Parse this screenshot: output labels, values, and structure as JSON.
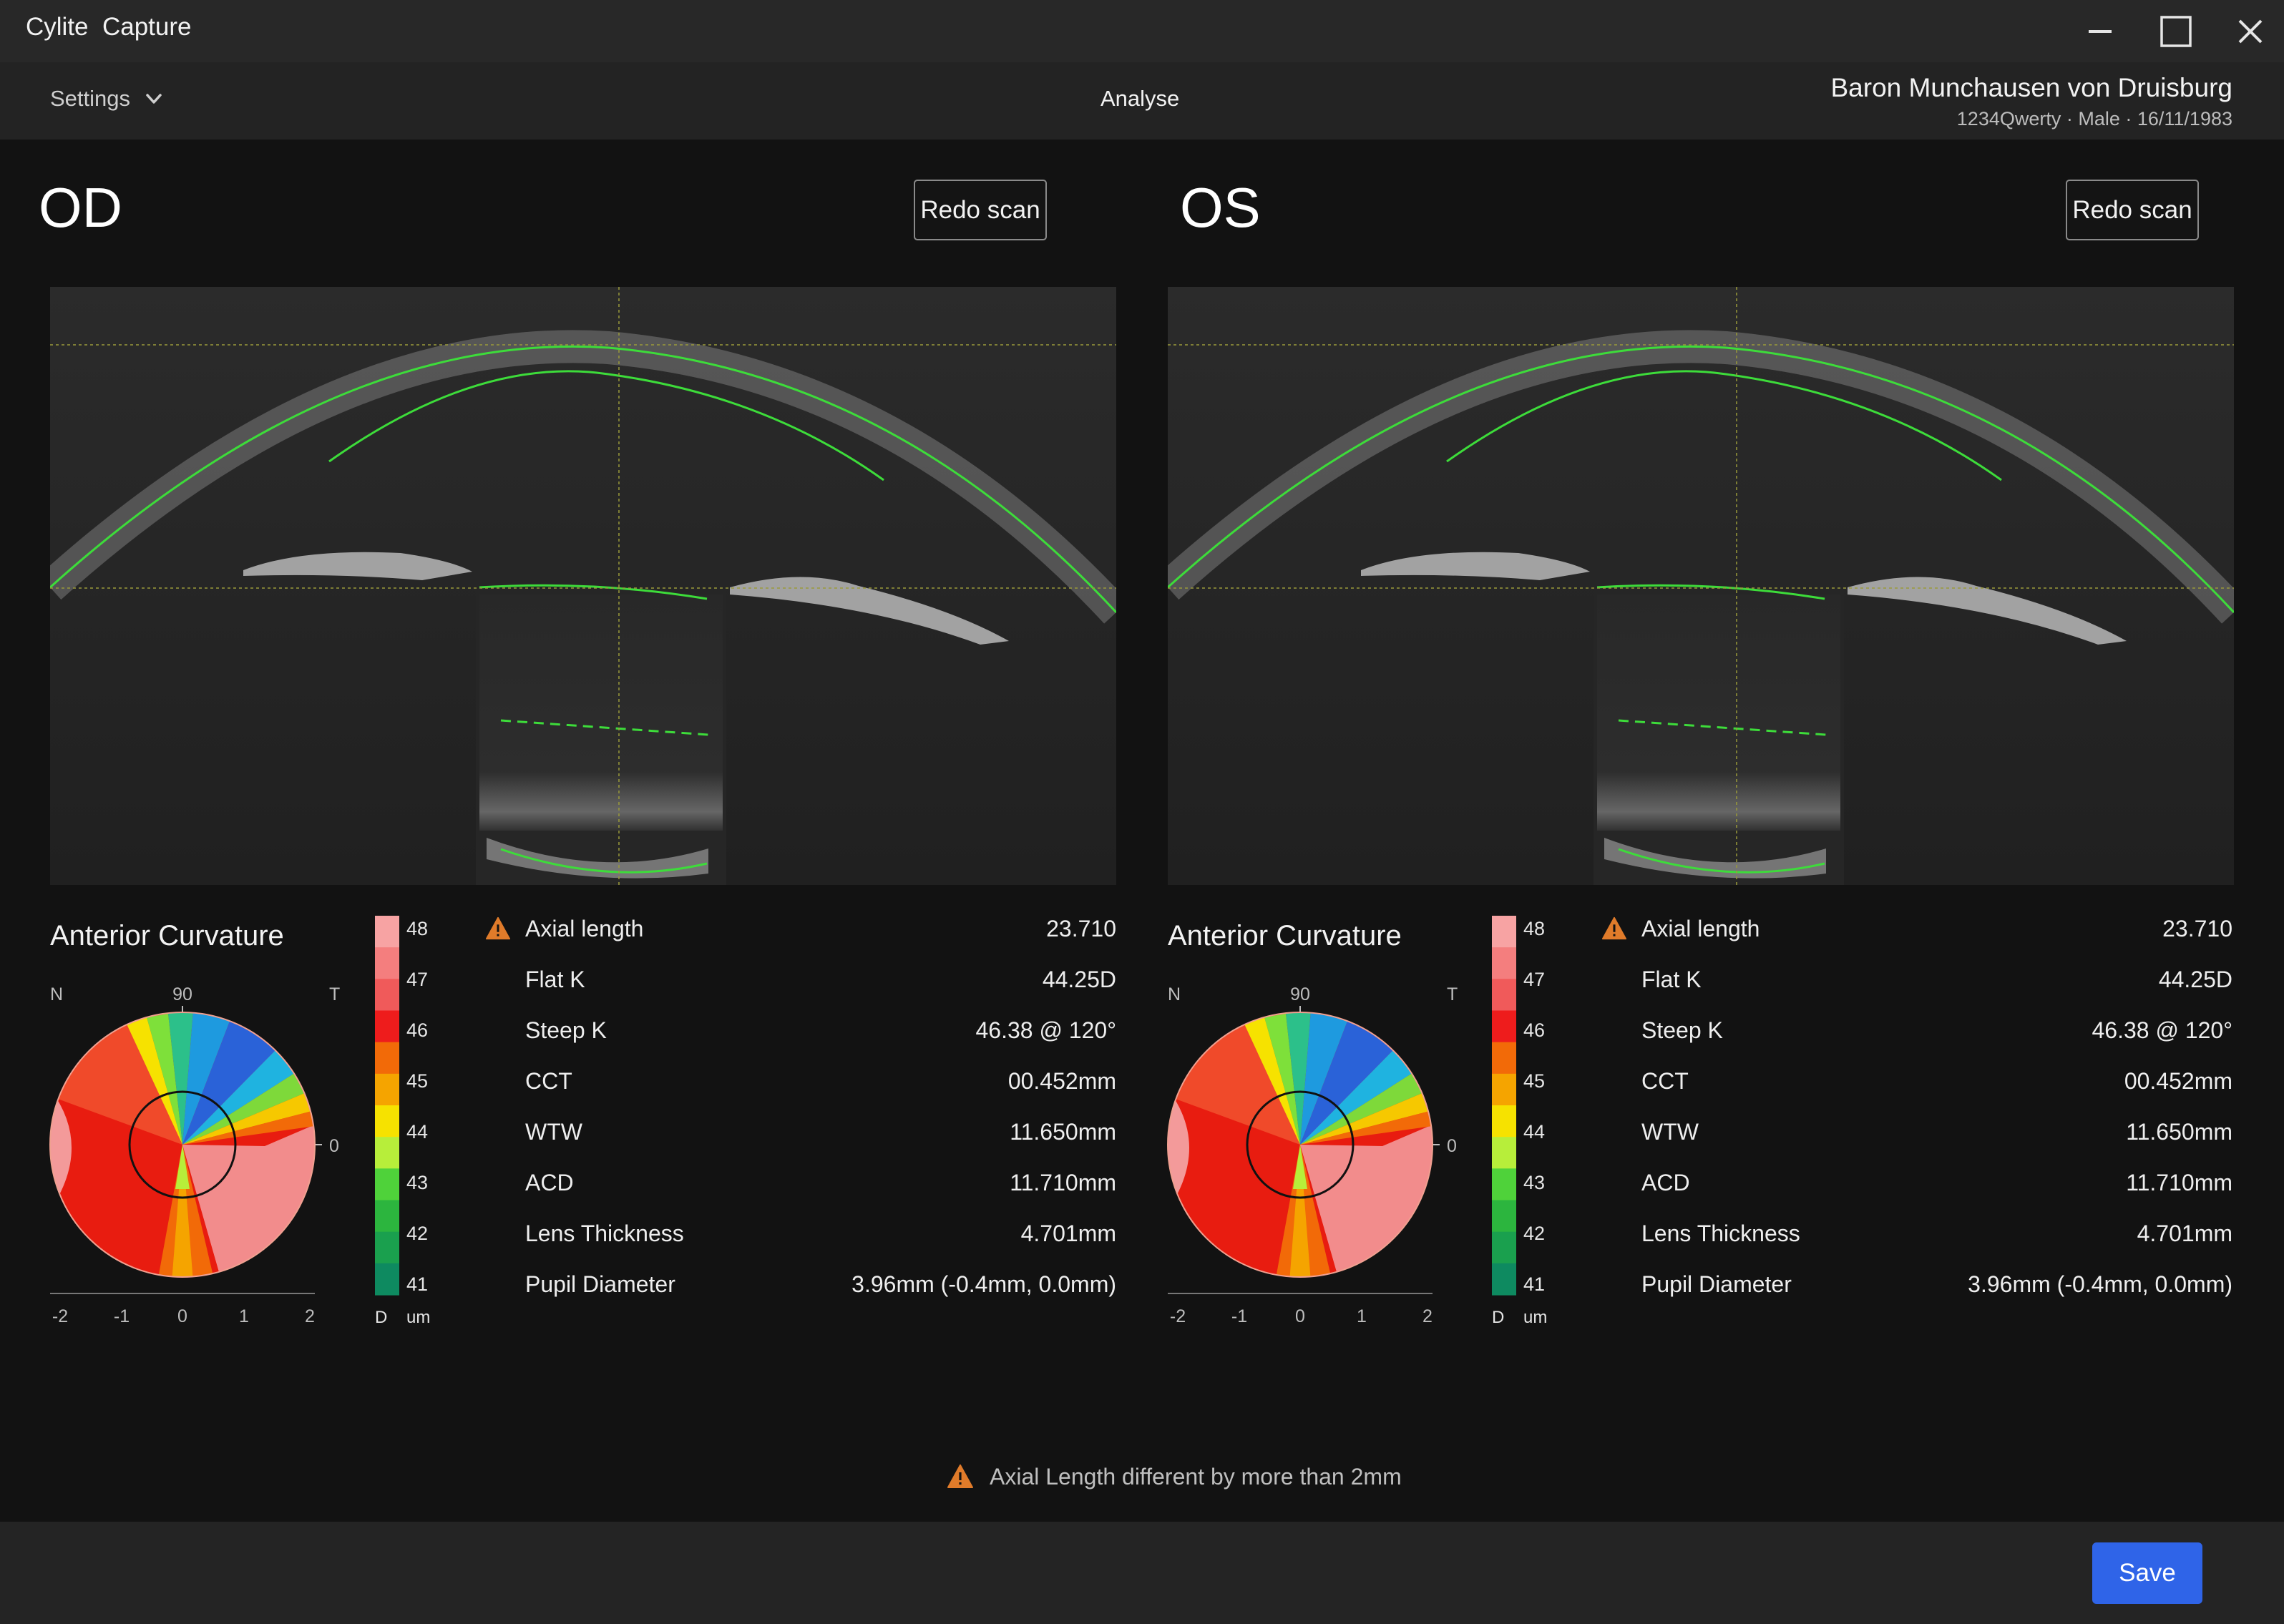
{
  "window": {
    "title": "Cylite  Capture"
  },
  "toolbar": {
    "settings_label": "Settings",
    "active_tab": "Analyse"
  },
  "patient": {
    "name": "Baron Munchausen von Druisburg",
    "meta": "1234Qwerty ·  Male  ·  16/11/1983"
  },
  "eyes": [
    {
      "label": "OD",
      "redo_label": "Redo scan"
    },
    {
      "label": "OS",
      "redo_label": "Redo scan"
    }
  ],
  "curvature": {
    "title": "Anterior Curvature",
    "orientation": {
      "left": "N",
      "top": "90",
      "right": "T",
      "right_tick": "0"
    },
    "x_ticks": [
      "-2",
      "-1",
      "0",
      "1",
      "2"
    ],
    "scale_labels": [
      "48",
      "47",
      "46",
      "45",
      "44",
      "43",
      "42",
      "41"
    ],
    "scale_units": [
      "D",
      "um"
    ],
    "scale_colors": [
      "#f7a3a3",
      "#f47e7e",
      "#f05a5a",
      "#ee1c1c",
      "#f26a08",
      "#f5a400",
      "#f6e200",
      "#b7ee3a",
      "#4fd23a",
      "#2cb53e",
      "#1aa04e",
      "#0e8a60"
    ]
  },
  "metrics_warning_icon": "warning-triangle-icon",
  "metrics": [
    [
      {
        "label": "Axial length",
        "value": "23.710",
        "warning": true
      },
      {
        "label": "Flat K",
        "value": "44.25D"
      },
      {
        "label": "Steep K",
        "value": "46.38 @ 120°"
      },
      {
        "label": "CCT",
        "value": "00.452mm"
      },
      {
        "label": "WTW",
        "value": "11.650mm"
      },
      {
        "label": "ACD",
        "value": "11.710mm"
      },
      {
        "label": "Lens Thickness",
        "value": "4.701mm"
      },
      {
        "label": "Pupil Diameter",
        "value": "3.96mm (-0.4mm, 0.0mm)"
      }
    ],
    [
      {
        "label": "Axial length",
        "value": "23.710",
        "warning": true
      },
      {
        "label": "Flat K",
        "value": "44.25D"
      },
      {
        "label": "Steep K",
        "value": "46.38 @ 120°"
      },
      {
        "label": "CCT",
        "value": "00.452mm"
      },
      {
        "label": "WTW",
        "value": "11.650mm"
      },
      {
        "label": "ACD",
        "value": "11.710mm"
      },
      {
        "label": "Lens Thickness",
        "value": "4.701mm"
      },
      {
        "label": "Pupil Diameter",
        "value": "3.96mm (-0.4mm, 0.0mm)"
      }
    ]
  ],
  "footer": {
    "warning": "Axial Length different by more than 2mm",
    "save_label": "Save"
  },
  "colors": {
    "accent": "#2f64e8",
    "warning": "#e07b2a",
    "segmentation": "#3ddc3a"
  }
}
